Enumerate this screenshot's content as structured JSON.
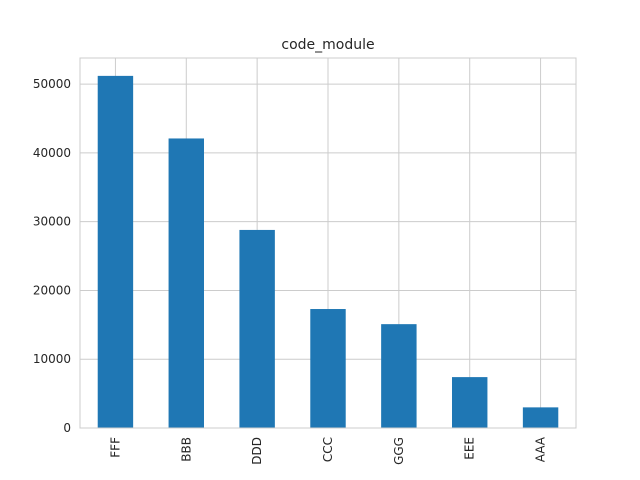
{
  "chart_data": {
    "type": "bar",
    "title": "code_module",
    "xlabel": "",
    "ylabel": "",
    "categories": [
      "FFF",
      "BBB",
      "DDD",
      "CCC",
      "GGG",
      "EEE",
      "AAA"
    ],
    "values": [
      51200,
      42100,
      28800,
      17300,
      15100,
      7400,
      3000
    ],
    "yticks": [
      0,
      10000,
      20000,
      30000,
      40000,
      50000
    ],
    "ylim": [
      0,
      53800
    ],
    "grid": true,
    "legend": "none",
    "bar_color": "#1f77b4"
  }
}
